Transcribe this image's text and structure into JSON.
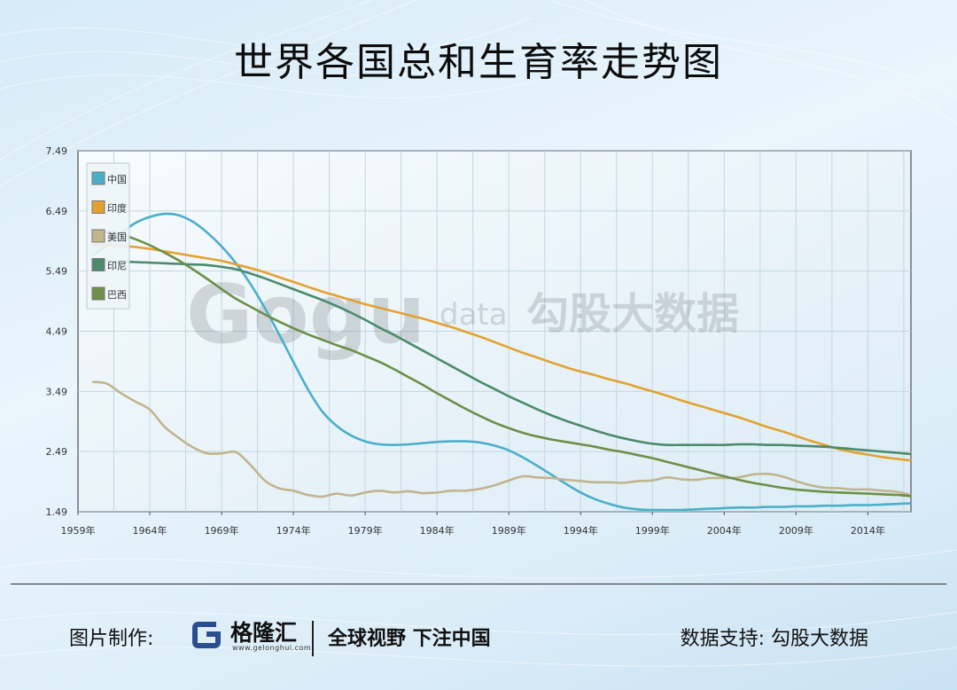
{
  "title": "世界各国总和生育率走势图",
  "watermark": {
    "mark": "Gogu",
    "suffix": "data",
    "name": "勾股大数据"
  },
  "footer": {
    "label": "图片制作:",
    "brand": "格隆汇",
    "site": "www.gelonghui.com",
    "slogan": "全球视野 下注中国",
    "support": "数据支持: 勾股大数据"
  },
  "chart_data": {
    "type": "line",
    "title": "世界各国总和生育率走势图",
    "xlabel": "",
    "ylabel": "",
    "x": [
      1960,
      1961,
      1962,
      1963,
      1964,
      1965,
      1966,
      1967,
      1968,
      1969,
      1970,
      1971,
      1972,
      1973,
      1974,
      1975,
      1976,
      1977,
      1978,
      1979,
      1980,
      1981,
      1982,
      1983,
      1984,
      1985,
      1986,
      1987,
      1988,
      1989,
      1990,
      1991,
      1992,
      1993,
      1994,
      1995,
      1996,
      1997,
      1998,
      1999,
      2000,
      2001,
      2002,
      2003,
      2004,
      2005,
      2006,
      2007,
      2008,
      2009,
      2010,
      2011,
      2012,
      2013,
      2014,
      2015,
      2016,
      2017
    ],
    "xlim": [
      1959,
      2017
    ],
    "ylim": [
      1.49,
      7.49
    ],
    "x_ticks": [
      "1959年",
      "1964年",
      "1969年",
      "1974年",
      "1979年",
      "1984年",
      "1989年",
      "1994年",
      "1999年",
      "2004年",
      "2009年",
      "2014年"
    ],
    "y_ticks": [
      "1.49",
      "2.49",
      "3.49",
      "4.49",
      "5.49",
      "6.49",
      "7.49"
    ],
    "grid": true,
    "legend_position": "top-left",
    "series": [
      {
        "name": "中国",
        "color": "#4aafc9",
        "values": [
          5.75,
          5.92,
          6.12,
          6.29,
          6.39,
          6.44,
          6.42,
          6.31,
          6.13,
          5.9,
          5.62,
          5.28,
          4.88,
          4.44,
          3.98,
          3.53,
          3.16,
          2.92,
          2.76,
          2.66,
          2.61,
          2.6,
          2.61,
          2.63,
          2.65,
          2.66,
          2.66,
          2.64,
          2.59,
          2.51,
          2.39,
          2.25,
          2.1,
          1.95,
          1.81,
          1.7,
          1.62,
          1.56,
          1.53,
          1.52,
          1.52,
          1.52,
          1.53,
          1.54,
          1.55,
          1.56,
          1.56,
          1.57,
          1.57,
          1.58,
          1.58,
          1.59,
          1.59,
          1.6,
          1.6,
          1.61,
          1.62,
          1.63
        ]
      },
      {
        "name": "印度",
        "color": "#e3a230",
        "values": [
          5.92,
          5.92,
          5.91,
          5.89,
          5.86,
          5.82,
          5.78,
          5.74,
          5.7,
          5.66,
          5.6,
          5.54,
          5.47,
          5.39,
          5.31,
          5.23,
          5.15,
          5.08,
          5.01,
          4.94,
          4.88,
          4.82,
          4.76,
          4.7,
          4.63,
          4.56,
          4.48,
          4.4,
          4.31,
          4.22,
          4.13,
          4.05,
          3.97,
          3.89,
          3.82,
          3.76,
          3.69,
          3.63,
          3.56,
          3.49,
          3.42,
          3.34,
          3.27,
          3.2,
          3.13,
          3.06,
          2.98,
          2.9,
          2.83,
          2.75,
          2.67,
          2.6,
          2.53,
          2.48,
          2.44,
          2.4,
          2.37,
          2.34
        ]
      },
      {
        "name": "美国",
        "color": "#c1b58e",
        "values": null,
        "points": [
          [
            1960,
            3.65
          ],
          [
            1961,
            3.62
          ],
          [
            1962,
            3.46
          ],
          [
            1963,
            3.32
          ],
          [
            1964,
            3.19
          ],
          [
            1965,
            2.91
          ],
          [
            1966,
            2.72
          ],
          [
            1967,
            2.56
          ],
          [
            1968,
            2.46
          ],
          [
            1969,
            2.46
          ],
          [
            1970,
            2.48
          ],
          [
            1971,
            2.27
          ],
          [
            1972,
            2.01
          ],
          [
            1973,
            1.88
          ],
          [
            1974,
            1.84
          ],
          [
            1975,
            1.77
          ],
          [
            1976,
            1.74
          ],
          [
            1977,
            1.79
          ],
          [
            1978,
            1.76
          ],
          [
            1979,
            1.81
          ],
          [
            1980,
            1.84
          ],
          [
            1981,
            1.81
          ],
          [
            1982,
            1.83
          ],
          [
            1983,
            1.8
          ],
          [
            1984,
            1.81
          ],
          [
            1985,
            1.84
          ],
          [
            1986,
            1.84
          ],
          [
            1987,
            1.87
          ],
          [
            1988,
            1.93
          ],
          [
            1989,
            2.01
          ],
          [
            1990,
            2.08
          ],
          [
            1991,
            2.06
          ],
          [
            1992,
            2.05
          ],
          [
            1993,
            2.02
          ],
          [
            1994,
            2.0
          ],
          [
            1995,
            1.98
          ],
          [
            1996,
            1.98
          ],
          [
            1997,
            1.97
          ],
          [
            1998,
            2.0
          ],
          [
            1999,
            2.01
          ],
          [
            2000,
            2.06
          ],
          [
            2001,
            2.03
          ],
          [
            2002,
            2.02
          ],
          [
            2003,
            2.05
          ],
          [
            2004,
            2.05
          ],
          [
            2005,
            2.06
          ],
          [
            2006,
            2.11
          ],
          [
            2007,
            2.12
          ],
          [
            2008,
            2.08
          ],
          [
            2009,
            2.0
          ],
          [
            2010,
            1.93
          ],
          [
            2011,
            1.89
          ],
          [
            2012,
            1.88
          ],
          [
            2013,
            1.86
          ],
          [
            2014,
            1.86
          ],
          [
            2015,
            1.84
          ],
          [
            2016,
            1.82
          ],
          [
            2017,
            1.77
          ]
        ]
      },
      {
        "name": "印尼",
        "color": "#4b8b6c",
        "values": [
          5.67,
          5.66,
          5.65,
          5.64,
          5.63,
          5.62,
          5.61,
          5.6,
          5.59,
          5.56,
          5.52,
          5.45,
          5.37,
          5.28,
          5.19,
          5.1,
          5.01,
          4.91,
          4.8,
          4.68,
          4.55,
          4.43,
          4.3,
          4.17,
          4.04,
          3.91,
          3.78,
          3.65,
          3.53,
          3.41,
          3.3,
          3.19,
          3.09,
          3.0,
          2.92,
          2.84,
          2.77,
          2.71,
          2.66,
          2.62,
          2.6,
          2.6,
          2.6,
          2.6,
          2.6,
          2.61,
          2.61,
          2.6,
          2.6,
          2.59,
          2.58,
          2.57,
          2.55,
          2.53,
          2.51,
          2.49,
          2.47,
          2.45
        ]
      },
      {
        "name": "巴西",
        "color": "#6d8f47",
        "values": [
          6.15,
          6.14,
          6.1,
          6.02,
          5.92,
          5.8,
          5.67,
          5.52,
          5.36,
          5.19,
          5.03,
          4.9,
          4.77,
          4.65,
          4.54,
          4.44,
          4.35,
          4.26,
          4.18,
          4.08,
          3.98,
          3.86,
          3.73,
          3.6,
          3.46,
          3.33,
          3.2,
          3.08,
          2.97,
          2.88,
          2.8,
          2.74,
          2.69,
          2.65,
          2.61,
          2.57,
          2.52,
          2.48,
          2.43,
          2.38,
          2.32,
          2.26,
          2.2,
          2.14,
          2.08,
          2.02,
          1.97,
          1.93,
          1.89,
          1.86,
          1.84,
          1.82,
          1.81,
          1.8,
          1.79,
          1.78,
          1.77,
          1.75
        ]
      }
    ]
  }
}
